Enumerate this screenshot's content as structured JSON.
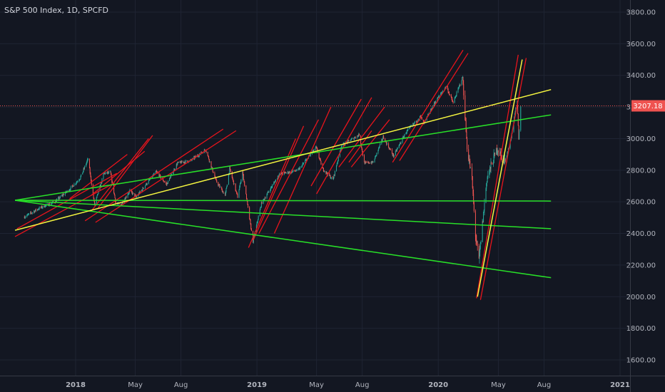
{
  "chart_data": {
    "type": "candlestick",
    "title": "S&P 500 Index, 1D, SPCFD",
    "price_label": "3207.18",
    "last_price": 3207.18,
    "y_ticks": [
      "3800.00",
      "3600.00",
      "3400.00",
      "3200.00",
      "3000.00",
      "2800.00",
      "2600.00",
      "2400.00",
      "2200.00",
      "2000.00",
      "1800.00",
      "1600.00"
    ],
    "y_tick_values": [
      3800,
      3600,
      3400,
      3200,
      3000,
      2800,
      2600,
      2400,
      2200,
      2000,
      1800,
      1600
    ],
    "x_ticks": [
      "2018",
      "May",
      "Aug",
      "2019",
      "May",
      "Aug",
      "2020",
      "May",
      "Aug",
      "2021"
    ],
    "x_tick_dates": [
      "2018-01-01",
      "2018-05-01",
      "2018-08-01",
      "2019-01-01",
      "2019-05-01",
      "2019-08-01",
      "2020-01-01",
      "2020-05-01",
      "2020-08-01",
      "2021-01-01"
    ],
    "ylim": [
      1530,
      3870
    ],
    "price_path": [
      [
        "2017-09-20",
        2505
      ],
      [
        "2017-10-20",
        2560
      ],
      [
        "2017-11-20",
        2600
      ],
      [
        "2017-12-20",
        2680
      ],
      [
        "2018-01-10",
        2750
      ],
      [
        "2018-01-26",
        2872
      ],
      [
        "2018-02-08",
        2580
      ],
      [
        "2018-02-27",
        2780
      ],
      [
        "2018-03-12",
        2785
      ],
      [
        "2018-03-23",
        2590
      ],
      [
        "2018-04-02",
        2580
      ],
      [
        "2018-04-20",
        2670
      ],
      [
        "2018-05-03",
        2630
      ],
      [
        "2018-05-25",
        2720
      ],
      [
        "2018-06-12",
        2790
      ],
      [
        "2018-07-03",
        2710
      ],
      [
        "2018-07-25",
        2845
      ],
      [
        "2018-08-20",
        2860
      ],
      [
        "2018-09-20",
        2930
      ],
      [
        "2018-10-11",
        2730
      ],
      [
        "2018-10-29",
        2640
      ],
      [
        "2018-11-07",
        2810
      ],
      [
        "2018-11-23",
        2630
      ],
      [
        "2018-12-03",
        2790
      ],
      [
        "2018-12-24",
        2350
      ],
      [
        "2019-01-10",
        2590
      ],
      [
        "2019-02-15",
        2775
      ],
      [
        "2019-03-25",
        2800
      ],
      [
        "2019-04-30",
        2945
      ],
      [
        "2019-05-13",
        2810
      ],
      [
        "2019-06-03",
        2740
      ],
      [
        "2019-06-20",
        2955
      ],
      [
        "2019-07-26",
        3025
      ],
      [
        "2019-08-05",
        2845
      ],
      [
        "2019-08-23",
        2850
      ],
      [
        "2019-09-12",
        3010
      ],
      [
        "2019-10-03",
        2890
      ],
      [
        "2019-10-28",
        3040
      ],
      [
        "2019-11-26",
        3140
      ],
      [
        "2019-12-03",
        3095
      ],
      [
        "2019-12-27",
        3240
      ],
      [
        "2020-01-17",
        3330
      ],
      [
        "2020-01-31",
        3225
      ],
      [
        "2020-02-19",
        3390
      ],
      [
        "2020-02-28",
        2950
      ],
      [
        "2020-03-09",
        2740
      ],
      [
        "2020-03-16",
        2390
      ],
      [
        "2020-03-23",
        2230
      ],
      [
        "2020-04-08",
        2750
      ],
      [
        "2020-04-29",
        2940
      ],
      [
        "2020-05-14",
        2850
      ],
      [
        "2020-05-26",
        2990
      ],
      [
        "2020-06-05",
        3190
      ],
      [
        "2020-06-08",
        3232
      ],
      [
        "2020-06-11",
        3000
      ],
      [
        "2020-06-15",
        3207
      ]
    ],
    "drawings": {
      "yellow_lines": [
        [
          [
            "2017-09-01",
            2420
          ],
          [
            "2020-08-15",
            3310
          ]
        ],
        [
          [
            "2020-03-20",
            2000
          ],
          [
            "2020-06-18",
            3500
          ]
        ]
      ],
      "green_lines": [
        [
          [
            "2017-09-01",
            2610
          ],
          [
            "2020-08-15",
            3150
          ]
        ],
        [
          [
            "2017-09-01",
            2610
          ],
          [
            "2020-08-15",
            2605
          ]
        ],
        [
          [
            "2017-09-01",
            2610
          ],
          [
            "2020-08-15",
            2430
          ]
        ],
        [
          [
            "2017-09-01",
            2610
          ],
          [
            "2020-08-15",
            2120
          ]
        ]
      ],
      "red_lines": [
        [
          [
            "2017-09-01",
            2380
          ],
          [
            "2018-03-20",
            2720
          ]
        ],
        [
          [
            "2017-09-05",
            2430
          ],
          [
            "2018-03-25",
            2780
          ]
        ],
        [
          [
            "2017-12-20",
            2620
          ],
          [
            "2018-04-15",
            2900
          ]
        ],
        [
          [
            "2018-02-01",
            2640
          ],
          [
            "2018-05-20",
            2920
          ]
        ],
        [
          [
            "2018-02-01",
            2540
          ],
          [
            "2018-05-28",
            3000
          ]
        ],
        [
          [
            "2018-02-15",
            2560
          ],
          [
            "2018-06-05",
            3020
          ]
        ],
        [
          [
            "2018-01-20",
            2480
          ],
          [
            "2018-10-25",
            3060
          ]
        ],
        [
          [
            "2018-02-10",
            2470
          ],
          [
            "2018-11-20",
            3050
          ]
        ],
        [
          [
            "2018-12-15",
            2310
          ],
          [
            "2019-03-20",
            3000
          ]
        ],
        [
          [
            "2018-12-25",
            2360
          ],
          [
            "2019-04-05",
            3080
          ]
        ],
        [
          [
            "2019-01-05",
            2400
          ],
          [
            "2019-05-05",
            3120
          ]
        ],
        [
          [
            "2019-02-05",
            2400
          ],
          [
            "2019-05-30",
            3200
          ]
        ],
        [
          [
            "2019-04-20",
            2700
          ],
          [
            "2019-07-30",
            3250
          ]
        ],
        [
          [
            "2019-05-01",
            2650
          ],
          [
            "2019-08-20",
            3260
          ]
        ],
        [
          [
            "2019-06-15",
            2820
          ],
          [
            "2019-09-15",
            3200
          ]
        ],
        [
          [
            "2019-07-10",
            2820
          ],
          [
            "2019-09-25",
            3120
          ]
        ],
        [
          [
            "2019-07-05",
            2850
          ],
          [
            "2019-08-20",
            3050
          ]
        ],
        [
          [
            "2019-10-01",
            2850
          ],
          [
            "2020-02-20",
            3560
          ]
        ],
        [
          [
            "2019-10-15",
            2860
          ],
          [
            "2020-03-01",
            3540
          ]
        ],
        [
          [
            "2020-03-18",
            1990
          ],
          [
            "2020-06-10",
            3530
          ]
        ],
        [
          [
            "2020-03-26",
            1980
          ],
          [
            "2020-06-26",
            3510
          ]
        ]
      ]
    },
    "colors": {
      "background": "#131722",
      "grid": "#1f2433",
      "up_candle": "#26a69a",
      "down_candle": "#ef5350",
      "axis_text": "#b2b5be",
      "yellow": "#f7f740",
      "green": "#28e028",
      "red": "#e8141c",
      "price_line": "#ef5350",
      "price_tag": "#ef5350"
    }
  }
}
